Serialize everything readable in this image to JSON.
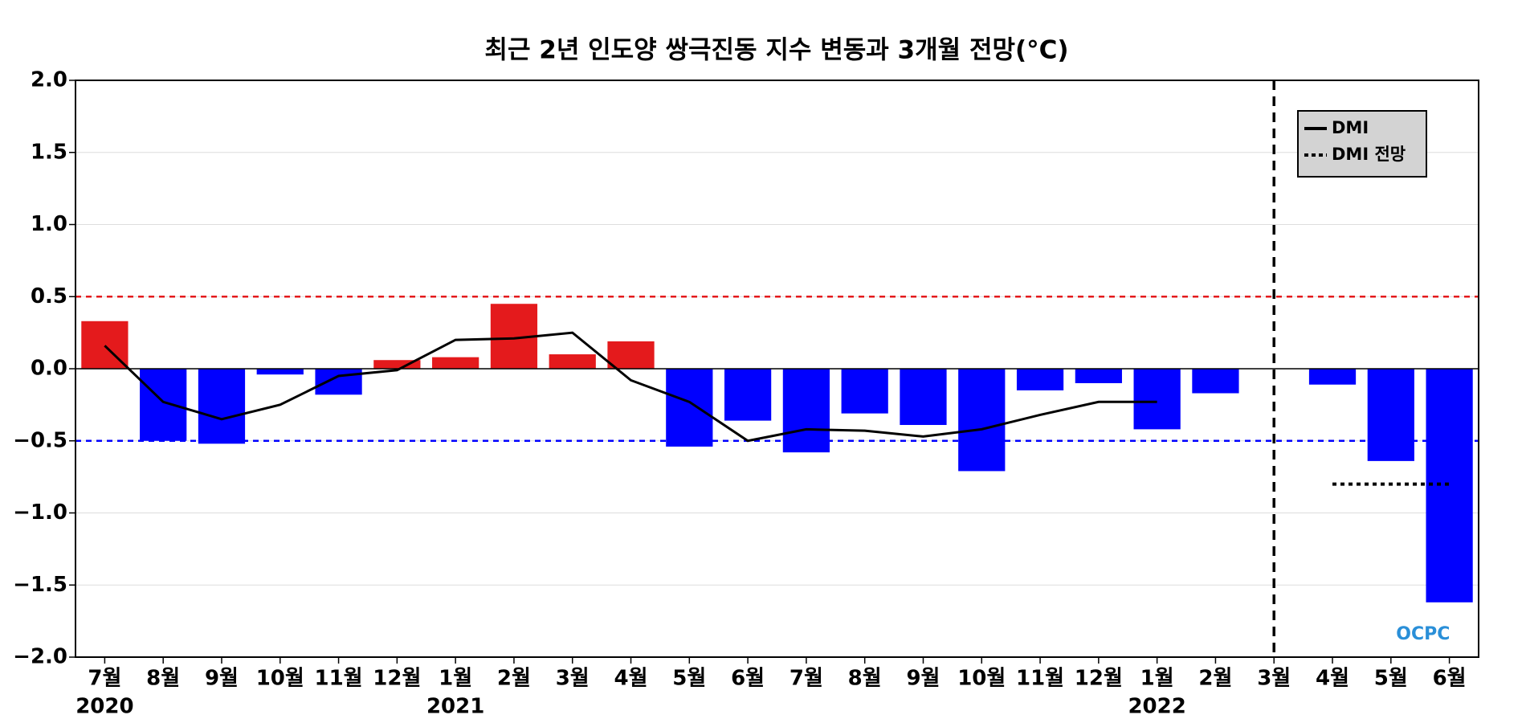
{
  "chart_data": {
    "type": "bar_line",
    "title": "최근 2년 인도양 쌍극진동 지수 변동과 3개월 전망(°C)",
    "categories": [
      "7월",
      "8월",
      "9월",
      "10월",
      "11월",
      "12월",
      "1월",
      "2월",
      "3월",
      "4월",
      "5월",
      "6월",
      "7월",
      "8월",
      "9월",
      "10월",
      "11월",
      "12월",
      "1월",
      "2월",
      "3월",
      "4월",
      "5월",
      "6월"
    ],
    "year_labels": [
      {
        "index": 0,
        "label": "2020"
      },
      {
        "index": 6,
        "label": "2021"
      },
      {
        "index": 18,
        "label": "2022"
      }
    ],
    "bars": {
      "values": [
        0.33,
        -0.5,
        -0.52,
        -0.04,
        -0.18,
        0.06,
        0.08,
        0.45,
        0.1,
        0.19,
        -0.54,
        -0.36,
        -0.58,
        -0.31,
        -0.39,
        -0.71,
        -0.15,
        -0.1,
        -0.42,
        -0.17,
        null,
        -0.11,
        -0.64,
        -1.62
      ],
      "positive_color": "#e41a1c",
      "negative_color": "#0000ff"
    },
    "series": [
      {
        "name": "DMI",
        "color": "#000000",
        "style": "solid",
        "values": [
          0.16,
          -0.23,
          -0.35,
          -0.25,
          -0.05,
          -0.01,
          0.2,
          0.21,
          0.25,
          -0.08,
          -0.23,
          -0.5,
          -0.42,
          -0.43,
          -0.47,
          -0.42,
          -0.32,
          -0.23,
          -0.23,
          null,
          null,
          null,
          null,
          null
        ]
      },
      {
        "name": "DMI 전망",
        "color": "#000000",
        "style": "dotted",
        "values": [
          null,
          null,
          null,
          null,
          null,
          null,
          null,
          null,
          null,
          null,
          null,
          null,
          null,
          null,
          null,
          null,
          null,
          null,
          null,
          null,
          null,
          -0.8,
          -0.8,
          -0.8
        ]
      }
    ],
    "reference_lines": [
      {
        "value": 0.5,
        "color": "#e41a1c"
      },
      {
        "value": -0.5,
        "color": "#0000ff"
      }
    ],
    "divider_index": 20,
    "watermark": "OCPC",
    "ylim": [
      -2,
      2
    ],
    "yticks": [
      {
        "value": -2,
        "label": "−2.0"
      },
      {
        "value": -1.5,
        "label": "−1.5"
      },
      {
        "value": -1,
        "label": "−1.0"
      },
      {
        "value": -0.5,
        "label": "−0.5"
      },
      {
        "value": 0,
        "label": "0.0"
      },
      {
        "value": 0.5,
        "label": "0.5"
      },
      {
        "value": 1,
        "label": "1.0"
      },
      {
        "value": 1.5,
        "label": "1.5"
      },
      {
        "value": 2,
        "label": "2.0"
      }
    ],
    "grid": true,
    "legend": "upper right"
  }
}
